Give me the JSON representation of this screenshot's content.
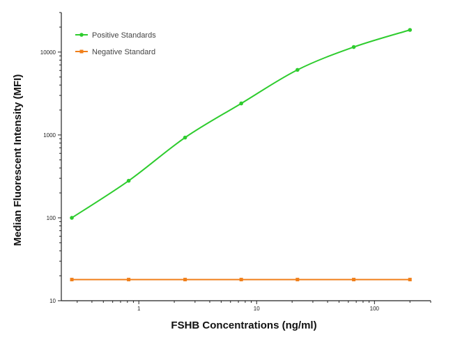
{
  "chart_data": {
    "type": "line",
    "xscale": "log",
    "yscale": "log",
    "xlim": [
      0.22,
      300
    ],
    "ylim": [
      10,
      30000
    ],
    "xticks": [
      1,
      10,
      100
    ],
    "xtick_labels": [
      "1",
      "10",
      "100"
    ],
    "yticks": [
      10,
      100,
      1000,
      10000
    ],
    "ytick_labels": [
      "10",
      "100",
      "1000",
      "10000"
    ],
    "xlabel": "FSHB Concentrations (ng/ml)",
    "ylabel": "Median  Fluorescent Intensity  (MFI)",
    "grid": false,
    "legend_position": "top-left",
    "series": [
      {
        "name": "Positive Standards",
        "color": "#2ecc2e",
        "marker": "circle",
        "fit": "smooth-curve",
        "points": [
          {
            "x": 0.27,
            "y": 100
          },
          {
            "x": 0.82,
            "y": 280
          },
          {
            "x": 2.47,
            "y": 930
          },
          {
            "x": 7.4,
            "y": 2400
          },
          {
            "x": 22.2,
            "y": 6100
          },
          {
            "x": 66.7,
            "y": 11500
          },
          {
            "x": 200,
            "y": 18500
          }
        ]
      },
      {
        "name": "Negative Standard",
        "color": "#f07f1a",
        "marker": "square",
        "fit": "line",
        "points": [
          {
            "x": 0.27,
            "y": 18
          },
          {
            "x": 0.82,
            "y": 18
          },
          {
            "x": 2.47,
            "y": 18
          },
          {
            "x": 7.4,
            "y": 18
          },
          {
            "x": 22.2,
            "y": 18
          },
          {
            "x": 66.7,
            "y": 18
          },
          {
            "x": 200,
            "y": 18
          }
        ]
      }
    ]
  }
}
